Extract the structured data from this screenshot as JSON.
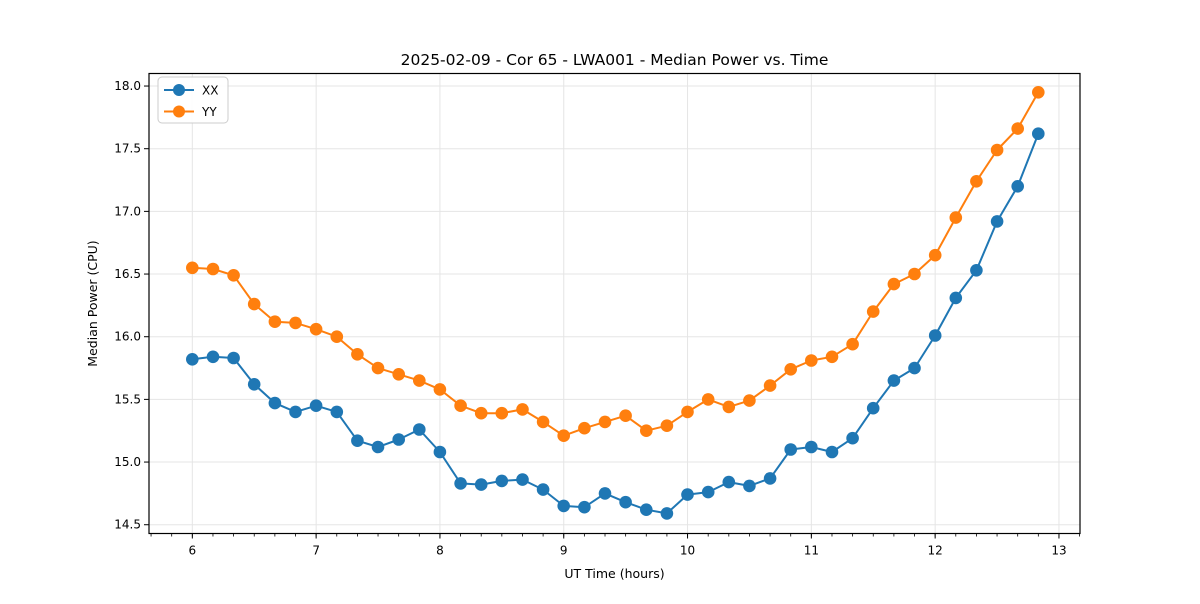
{
  "figure": {
    "background": "#ffffff",
    "plot_background": "#ffffff",
    "grid_color": "#e5e5e5",
    "spine_color": "#000000"
  },
  "chart_data": {
    "type": "line",
    "title": "2025-02-09 - Cor 65 - LWA001 - Median Power vs. Time",
    "xlabel": "UT Time (hours)",
    "ylabel": "Median Power (CPU)",
    "xlim": [
      5.65,
      13.17
    ],
    "ylim": [
      14.43,
      18.1
    ],
    "x_major_ticks": [
      6,
      7,
      8,
      9,
      10,
      11,
      12,
      13
    ],
    "x_minor_tick_step": 0.166667,
    "y_major_ticks": [
      14.5,
      15.0,
      15.5,
      16.0,
      16.5,
      17.0,
      17.5,
      18.0
    ],
    "grid": true,
    "legend_position": "upper-left",
    "x": [
      6.0,
      6.167,
      6.333,
      6.5,
      6.667,
      6.833,
      7.0,
      7.167,
      7.333,
      7.5,
      7.667,
      7.833,
      8.0,
      8.167,
      8.333,
      8.5,
      8.667,
      8.833,
      9.0,
      9.167,
      9.333,
      9.5,
      9.667,
      9.833,
      10.0,
      10.167,
      10.333,
      10.5,
      10.667,
      10.833,
      11.0,
      11.167,
      11.333,
      11.5,
      11.667,
      11.833,
      12.0,
      12.167,
      12.333,
      12.5,
      12.667,
      12.833
    ],
    "series": [
      {
        "name": "XX",
        "color": "#1f77b4",
        "values": [
          15.82,
          15.84,
          15.83,
          15.62,
          15.47,
          15.4,
          15.45,
          15.4,
          15.17,
          15.12,
          15.18,
          15.26,
          15.08,
          14.83,
          14.82,
          14.85,
          14.86,
          14.78,
          14.65,
          14.64,
          14.75,
          14.68,
          14.62,
          14.59,
          14.74,
          14.76,
          14.84,
          14.81,
          14.87,
          15.1,
          15.12,
          15.08,
          15.19,
          15.43,
          15.65,
          15.75,
          16.01,
          16.31,
          16.53,
          16.92,
          17.2,
          17.62
        ]
      },
      {
        "name": "YY",
        "color": "#ff7f0e",
        "values": [
          16.55,
          16.54,
          16.49,
          16.26,
          16.12,
          16.11,
          16.06,
          16.0,
          15.86,
          15.75,
          15.7,
          15.65,
          15.58,
          15.45,
          15.39,
          15.39,
          15.42,
          15.32,
          15.21,
          15.27,
          15.32,
          15.37,
          15.25,
          15.29,
          15.4,
          15.5,
          15.44,
          15.49,
          15.61,
          15.74,
          15.81,
          15.84,
          15.94,
          16.2,
          16.42,
          16.5,
          16.65,
          16.95,
          17.24,
          17.49,
          17.66,
          17.95
        ]
      }
    ]
  }
}
